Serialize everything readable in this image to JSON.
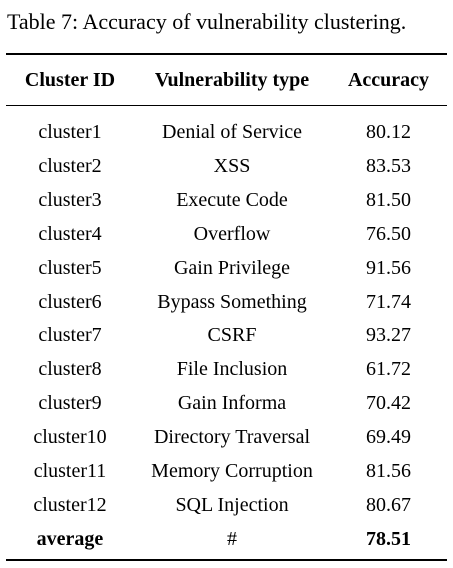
{
  "caption": "Table 7:  Accuracy of vulnerability clustering.",
  "table": {
    "headers": [
      "Cluster ID",
      "Vulnerability type",
      "Accuracy"
    ],
    "rows": [
      [
        "cluster1",
        "Denial of Service",
        "80.12"
      ],
      [
        "cluster2",
        "XSS",
        "83.53"
      ],
      [
        "cluster3",
        "Execute Code",
        "81.50"
      ],
      [
        "cluster4",
        "Overflow",
        "76.50"
      ],
      [
        "cluster5",
        "Gain Privilege",
        "91.56"
      ],
      [
        "cluster6",
        "Bypass Something",
        "71.74"
      ],
      [
        "cluster7",
        "CSRF",
        "93.27"
      ],
      [
        "cluster8",
        "File Inclusion",
        "61.72"
      ],
      [
        "cluster9",
        "Gain Informa",
        "70.42"
      ],
      [
        "cluster10",
        "Directory Traversal",
        "69.49"
      ],
      [
        "cluster11",
        "Memory Corruption",
        "81.56"
      ],
      [
        "cluster12",
        "SQL Injection",
        "80.67"
      ]
    ],
    "average": [
      "average",
      "#",
      "78.51"
    ]
  }
}
